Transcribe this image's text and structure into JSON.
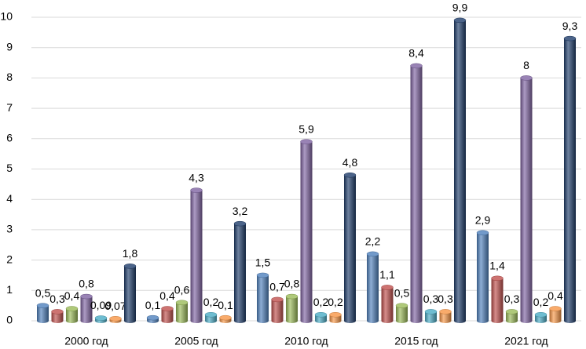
{
  "chart_data": {
    "type": "bar",
    "categories": [
      "2000 год",
      "2005 год",
      "2010 год",
      "2015 год",
      "2021 год"
    ],
    "series": [
      {
        "color": "#4f81bd",
        "values": [
          0.5,
          0.1,
          1.5,
          2.2,
          2.9
        ],
        "value_labels": [
          "0,5",
          "0,1",
          "1,5",
          "2,2",
          "2,9"
        ]
      },
      {
        "color": "#c0504d",
        "values": [
          0.3,
          0.4,
          0.7,
          1.1,
          1.4
        ],
        "value_labels": [
          "0,3",
          "0,4",
          "0,7",
          "1,1",
          "1,4"
        ]
      },
      {
        "color": "#9bbb59",
        "values": [
          0.4,
          0.6,
          0.8,
          0.5,
          0.3
        ],
        "value_labels": [
          "0,4",
          "0,6",
          "0,8",
          "0,5",
          "0,3"
        ]
      },
      {
        "color": "#8064a2",
        "values": [
          0.8,
          4.3,
          5.9,
          8.4,
          8
        ],
        "value_labels": [
          "0,8",
          "4,3",
          "5,9",
          "8,4",
          "8"
        ]
      },
      {
        "color": "#4bacc6",
        "values": [
          0.09,
          0.2,
          0.2,
          0.3,
          0.2
        ],
        "value_labels": [
          "0,09",
          "0,2",
          "0,2",
          "0,3",
          "0,2"
        ]
      },
      {
        "color": "#f79646",
        "values": [
          0.07,
          0.1,
          0.2,
          0.3,
          0.4
        ],
        "value_labels": [
          "0,07",
          "0,1",
          "0,2",
          "0,3",
          "0,4"
        ]
      },
      {
        "color": "#1f3d6b",
        "values": [
          1.8,
          3.2,
          4.8,
          9.9,
          9.3
        ],
        "value_labels": [
          "1,8",
          "3,2",
          "4,8",
          "9,9",
          "9,3"
        ]
      }
    ],
    "ylim": [
      0,
      10
    ],
    "yticks": [
      0,
      1,
      2,
      3,
      4,
      5,
      6,
      7,
      8,
      9,
      10
    ],
    "grid": true
  }
}
